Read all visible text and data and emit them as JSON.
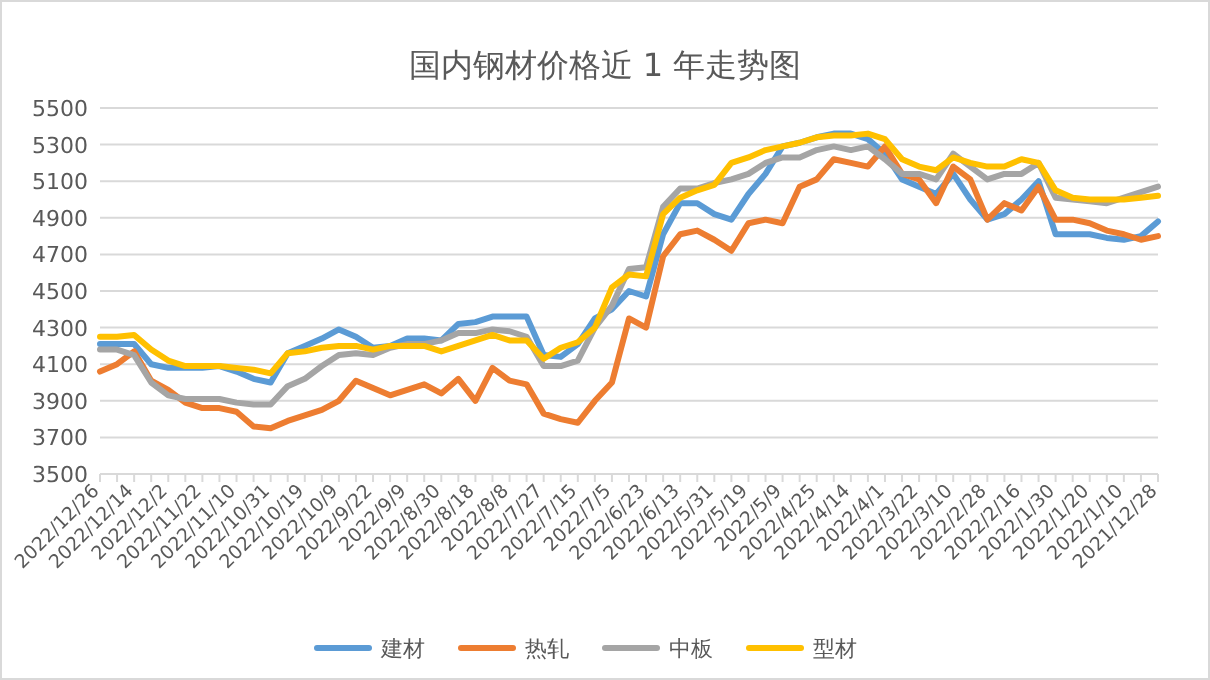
{
  "chart_data": {
    "type": "line",
    "title": "国内钢材价格近 1 年走势图",
    "categories": [
      "2022/12/26",
      null,
      "2022/12/14",
      null,
      "2022/12/2",
      null,
      "2022/11/22",
      null,
      "2022/11/10",
      null,
      "2022/10/31",
      null,
      "2022/10/19",
      null,
      "2022/10/9",
      null,
      "2022/9/22",
      null,
      "2022/9/9",
      null,
      "2022/8/30",
      null,
      "2022/8/18",
      null,
      "2022/8/8",
      null,
      "2022/7/27",
      null,
      "2022/7/15",
      null,
      "2022/7/5",
      null,
      "2022/6/23",
      null,
      "2022/6/13",
      null,
      "2022/5/31",
      null,
      "2022/5/19",
      null,
      "2022/5/9",
      null,
      "2022/4/25",
      null,
      "2022/4/14",
      null,
      "2022/4/1",
      null,
      "2022/3/22",
      null,
      "2022/3/10",
      null,
      "2022/2/28",
      null,
      "2022/2/16",
      null,
      "2022/1/30",
      null,
      "2022/1/20",
      null,
      "2022/1/10",
      null,
      "2021/12/28"
    ],
    "series": [
      {
        "name": "建材",
        "color": "#5b9bd5",
        "values": [
          4210,
          4210,
          4210,
          4100,
          4080,
          4080,
          4080,
          4090,
          4060,
          4020,
          4000,
          4160,
          4200,
          4240,
          4290,
          4250,
          4190,
          4200,
          4240,
          4240,
          4230,
          4320,
          4330,
          4360,
          4360,
          4360,
          4150,
          4140,
          4210,
          4350,
          4400,
          4500,
          4470,
          4810,
          4980,
          4980,
          4920,
          4890,
          5030,
          5140,
          5290,
          5310,
          5340,
          5360,
          5360,
          5330,
          5250,
          5110,
          5070,
          5030,
          5140,
          5000,
          4890,
          4920,
          5000,
          5100,
          4810,
          4810,
          4810,
          4790,
          4780,
          4800,
          4880
        ]
      },
      {
        "name": "热轧",
        "color": "#ed7d31",
        "values": [
          4060,
          4100,
          4170,
          4010,
          3960,
          3890,
          3860,
          3860,
          3840,
          3760,
          3750,
          3790,
          3820,
          3850,
          3900,
          4010,
          3970,
          3930,
          3960,
          3990,
          3940,
          4020,
          3900,
          4080,
          4010,
          3990,
          3830,
          3800,
          3780,
          3900,
          4000,
          4350,
          4300,
          4690,
          4810,
          4830,
          4780,
          4720,
          4870,
          4890,
          4870,
          5070,
          5110,
          5220,
          5200,
          5180,
          5290,
          5140,
          5110,
          4980,
          5180,
          5110,
          4890,
          4980,
          4940,
          5070,
          4890,
          4890,
          4870,
          4830,
          4810,
          4780,
          4800
        ]
      },
      {
        "name": "中板",
        "color": "#a5a5a5",
        "values": [
          4180,
          4180,
          4150,
          4000,
          3930,
          3910,
          3910,
          3910,
          3890,
          3880,
          3880,
          3980,
          4020,
          4090,
          4150,
          4160,
          4150,
          4190,
          4210,
          4210,
          4230,
          4270,
          4270,
          4290,
          4280,
          4250,
          4090,
          4090,
          4120,
          4300,
          4420,
          4620,
          4630,
          4960,
          5060,
          5060,
          5090,
          5110,
          5140,
          5200,
          5230,
          5230,
          5270,
          5290,
          5270,
          5290,
          5220,
          5140,
          5140,
          5110,
          5250,
          5180,
          5110,
          5140,
          5140,
          5200,
          5010,
          5000,
          4990,
          4980,
          5010,
          5040,
          5070
        ]
      },
      {
        "name": "型材",
        "color": "#ffc000",
        "values": [
          4250,
          4250,
          4260,
          4180,
          4120,
          4090,
          4090,
          4090,
          4080,
          4070,
          4050,
          4160,
          4170,
          4190,
          4200,
          4200,
          4180,
          4200,
          4200,
          4200,
          4170,
          4200,
          4230,
          4260,
          4230,
          4230,
          4130,
          4190,
          4220,
          4300,
          4520,
          4590,
          4580,
          4920,
          5010,
          5050,
          5080,
          5200,
          5230,
          5270,
          5290,
          5310,
          5340,
          5350,
          5350,
          5360,
          5330,
          5220,
          5180,
          5160,
          5230,
          5200,
          5180,
          5180,
          5220,
          5200,
          5050,
          5010,
          5000,
          5000,
          5000,
          5010,
          5020
        ]
      }
    ],
    "ylim": [
      3500,
      5500
    ],
    "yticks": [
      3500,
      3700,
      3900,
      4100,
      4300,
      4500,
      4700,
      4900,
      5100,
      5300,
      5500
    ],
    "grid": "y",
    "legend": "bottom",
    "marker": "none",
    "line_style": "solid"
  }
}
